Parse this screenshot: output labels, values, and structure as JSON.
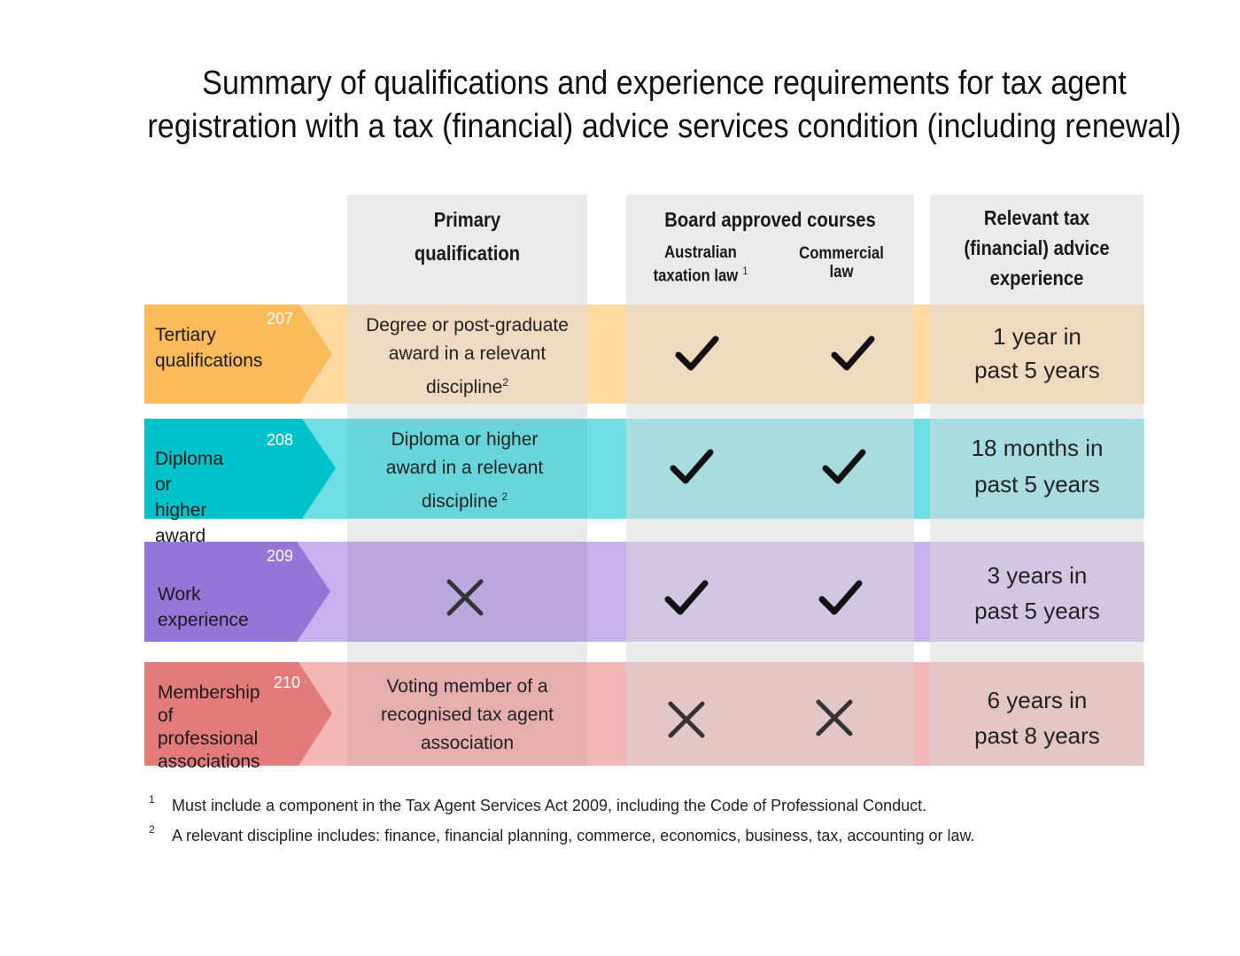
{
  "title_line1": "Summary of qualifications and experience requirements for tax agent",
  "title_line2": "registration with a tax (financial) advice services condition (including renewal)",
  "headers": {
    "primary_l1": "Primary",
    "primary_l2": "qualification",
    "board": "Board approved courses",
    "atl_l1": "Australian",
    "atl_l2": "taxation law",
    "atl_note": "1",
    "comm_l1": "Commercial",
    "comm_l2": "law",
    "exp_l1": "Relevant tax",
    "exp_l2": "(financial) advice",
    "exp_l3": "experience"
  },
  "rows": [
    {
      "number": "207",
      "label_l1": "Tertiary",
      "label_l2": "qualifications",
      "label_l3": "",
      "primary_l1": "Degree or post-graduate",
      "primary_l2": "award in a relevant",
      "primary_l3": "discipline",
      "primary_note": "2",
      "primary_mark": "",
      "atl_mark": "check-icon",
      "comm_mark": "check-icon",
      "exp_l1": "1 year in",
      "exp_l2": "past 5 years",
      "colors": {
        "tag": "#fcbb5a",
        "band": "#fdd9a0",
        "cellA": "#eddac0",
        "cellB": "#eedbbf"
      }
    },
    {
      "number": "208",
      "label_l1": "Diploma or higher",
      "label_l2": "award",
      "label_l3": "",
      "primary_l1": "Diploma or higher",
      "primary_l2": "award in a relevant",
      "primary_l3": "discipline",
      "primary_note": "2",
      "primary_mark": "",
      "atl_mark": "check-icon",
      "comm_mark": "check-icon",
      "exp_l1": "18 months in",
      "exp_l2": "past 5 years",
      "colors": {
        "tag": "#00c2cb",
        "band": "#6fdfe4",
        "cellA": "#68d5da",
        "cellB": "#a8dcdf"
      }
    },
    {
      "number": "209",
      "label_l1": "Work experience",
      "label_l2": "",
      "label_l3": "",
      "primary_l1": "",
      "primary_l2": "",
      "primary_l3": "",
      "primary_note": "",
      "primary_mark": "cross-icon",
      "atl_mark": "check-icon",
      "comm_mark": "check-icon",
      "exp_l1": "3 years in",
      "exp_l2": "past 5 years",
      "colors": {
        "tag": "#9575d8",
        "band": "#c6b3ee",
        "cellA": "#baa7de",
        "cellB": "#d2c6e3"
      }
    },
    {
      "number": "210",
      "label_l1": "Membership",
      "label_l2": "of professional",
      "label_l3": "associations",
      "primary_l1": "Voting member of a",
      "primary_l2": "recognised tax agent",
      "primary_l3": "association",
      "primary_note": "",
      "primary_mark": "",
      "atl_mark": "cross-icon",
      "comm_mark": "cross-icon",
      "exp_l1": "6 years in",
      "exp_l2": "past 8 years",
      "colors": {
        "tag": "#e47b7b",
        "band": "#f3b7b7",
        "cellA": "#e6aeae",
        "cellB": "#e5c6c7"
      }
    }
  ],
  "footnotes": [
    {
      "num": "1",
      "text": "Must include a component in the Tax Agent Services Act 2009, including the Code of Professional Conduct."
    },
    {
      "num": "2",
      "text": "A relevant discipline includes: finance, financial planning, commerce, economics, business, tax, accounting or law."
    }
  ]
}
